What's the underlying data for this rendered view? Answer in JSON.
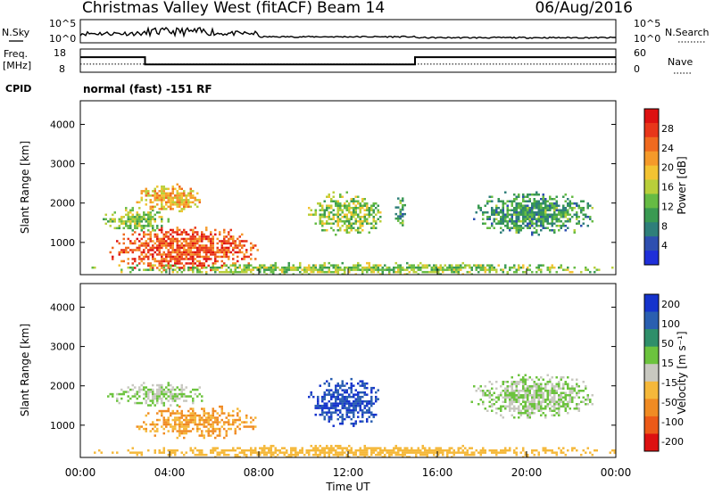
{
  "header": {
    "title": "Christmas Valley West (fitACF)",
    "beam": "Beam 14",
    "date": "06/Aug/2016"
  },
  "nsky_panel": {
    "left_label": "N.Sky",
    "left_ticks": [
      "10^5",
      "10^0"
    ],
    "right_label": "N.Search",
    "right_ticks": [
      "10^5",
      "10^0"
    ]
  },
  "freq_panel": {
    "left_label_line1": "Freq.",
    "left_label_line2": "[MHz]",
    "left_ticks": [
      "18",
      "8"
    ],
    "right_label": "Nave",
    "right_ticks": [
      "60",
      "0"
    ],
    "freq_mhz": {
      "x_hours": [
        0,
        2.9,
        2.9,
        15.0,
        15.0,
        24
      ],
      "y": [
        14.5,
        14.5,
        11.4,
        11.4,
        14.5,
        14.5
      ]
    },
    "nave_dotted_level": 21
  },
  "cpid": {
    "label": "CPID",
    "text": "normal (fast) -151 RF"
  },
  "chart_data": [
    {
      "type": "heatmap",
      "name": "power",
      "ylabel": "Slant Range [km]",
      "yticks": [
        "1000",
        "2000",
        "3000",
        "4000"
      ],
      "ylim": [
        180,
        4600
      ],
      "xlim_hours": [
        0,
        24
      ],
      "colorbar_label": "Power [dB]",
      "colorbar_ticks": [
        "4",
        "8",
        "12",
        "16",
        "20",
        "24",
        "28"
      ],
      "colorbar_colors": [
        "#1f2fd9",
        "#2e4fb0",
        "#2f7f7a",
        "#3a9a52",
        "#66bb44",
        "#b9cf3a",
        "#f3c332",
        "#f59a2a",
        "#f06a1f",
        "#e8361a",
        "#dd1111"
      ],
      "regions": [
        {
          "t0": 1.3,
          "t1": 8.0,
          "r0": 300,
          "r1": 1400,
          "value": 26
        },
        {
          "t0": 1.0,
          "t1": 4.0,
          "r0": 1300,
          "r1": 1900,
          "value": 14
        },
        {
          "t0": 2.5,
          "t1": 5.5,
          "r0": 1800,
          "r1": 2500,
          "value": 20
        },
        {
          "t0": 10.2,
          "t1": 13.5,
          "r0": 1200,
          "r1": 2300,
          "value": 14
        },
        {
          "t0": 14.0,
          "t1": 14.6,
          "r0": 1400,
          "r1": 2200,
          "value": 10
        },
        {
          "t0": 17.5,
          "t1": 23.0,
          "r0": 1200,
          "r1": 2300,
          "value": 10
        },
        {
          "t0": 0.5,
          "t1": 24.0,
          "r0": 200,
          "r1": 500,
          "value": 14
        }
      ]
    },
    {
      "type": "heatmap",
      "name": "velocity",
      "ylabel": "Slant Range [km]",
      "yticks": [
        "1000",
        "2000",
        "3000",
        "4000"
      ],
      "ylim": [
        180,
        4600
      ],
      "xlim_hours": [
        0,
        24
      ],
      "xticks": [
        "00:00",
        "04:00",
        "08:00",
        "12:00",
        "16:00",
        "20:00",
        "00:00"
      ],
      "xlabel": "Time UT",
      "colorbar_label": "Velocity [m s⁻¹]",
      "colorbar_ticks": [
        "200",
        "100",
        "50",
        "15",
        "-15",
        "-50",
        "-100",
        "-200"
      ],
      "colorbar_colors": [
        "#1533cc",
        "#2a5fb0",
        "#2f8f6a",
        "#6cc33e",
        "#c8c8c0",
        "#f5b83a",
        "#f08b23",
        "#ec5a18",
        "#dd1111"
      ],
      "regions": [
        {
          "t0": 2.5,
          "t1": 8.0,
          "r0": 700,
          "r1": 1500,
          "value": -80
        },
        {
          "t0": 1.2,
          "t1": 5.5,
          "r0": 1500,
          "r1": 2100,
          "value": 0
        },
        {
          "t0": 10.2,
          "t1": 13.5,
          "r0": 1000,
          "r1": 2200,
          "value": 150
        },
        {
          "t0": 17.5,
          "t1": 23.0,
          "r0": 1200,
          "r1": 2300,
          "value": 0
        },
        {
          "t0": 0.5,
          "t1": 24.0,
          "r0": 200,
          "r1": 500,
          "value": -40
        }
      ]
    }
  ]
}
